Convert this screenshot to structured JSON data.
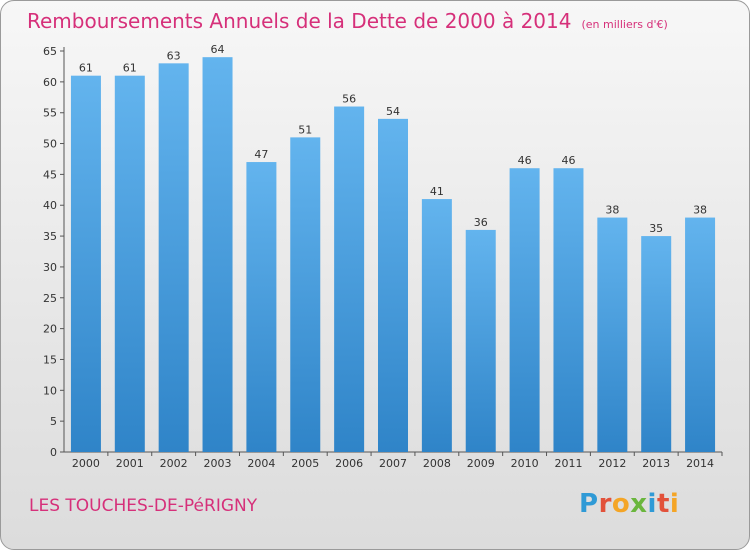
{
  "header": {
    "title": "Remboursements Annuels de la Dette de 2000 à 2014",
    "unit": "(en milliers d'€)"
  },
  "footer": {
    "commune": "LES TOUCHES-DE-PéRIGNY",
    "logo_letters": [
      "P",
      "r",
      "o",
      "x",
      "i",
      "t",
      "i"
    ]
  },
  "colors": {
    "title": "#d6307a",
    "bar_top": "#63b4ee",
    "bar_bottom": "#2f84c8"
  },
  "chart_data": {
    "type": "bar",
    "title": "Remboursements Annuels de la Dette de 2000 à 2014",
    "categories": [
      "2000",
      "2001",
      "2002",
      "2003",
      "2004",
      "2005",
      "2006",
      "2007",
      "2008",
      "2009",
      "2010",
      "2011",
      "2012",
      "2013",
      "2014"
    ],
    "values": [
      61,
      61,
      63,
      64,
      47,
      51,
      56,
      54,
      41,
      36,
      46,
      46,
      38,
      35,
      38
    ],
    "ylim": [
      0,
      65
    ],
    "yticks": [
      0,
      5,
      10,
      15,
      20,
      25,
      30,
      35,
      40,
      45,
      50,
      55,
      60,
      65
    ],
    "grid": false,
    "data_labels": true
  }
}
